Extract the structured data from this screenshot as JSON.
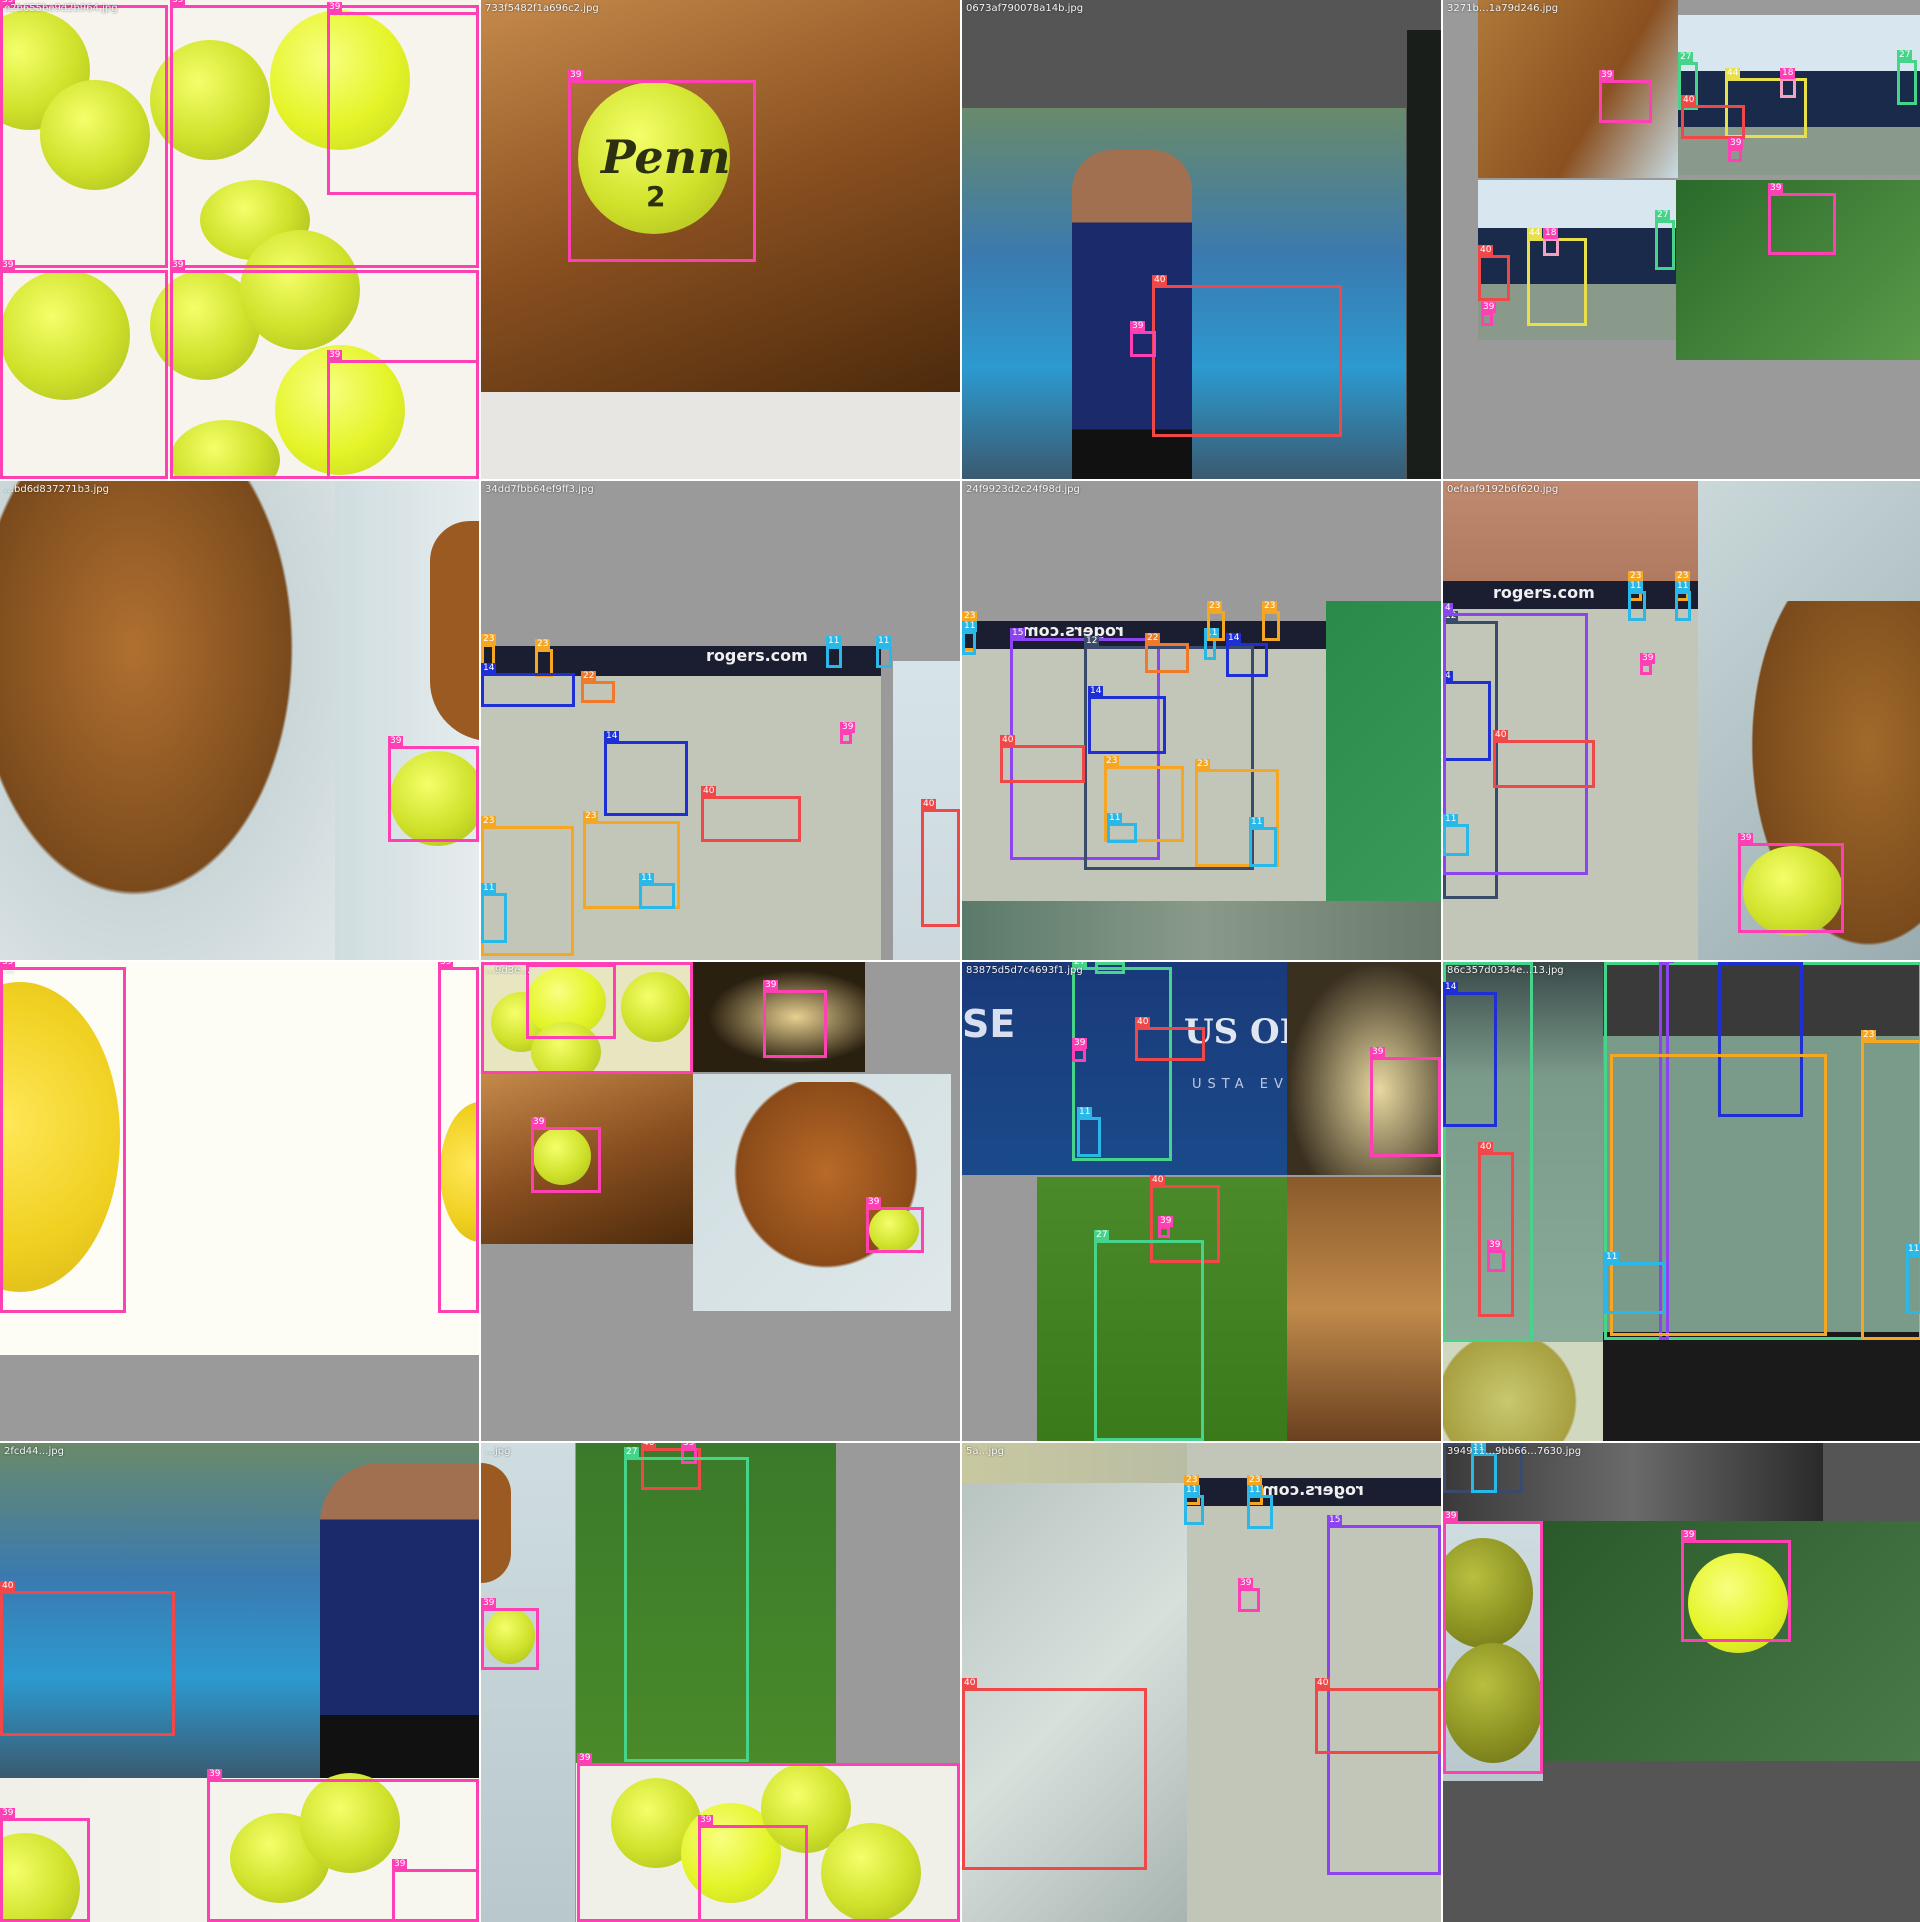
{
  "colors": {
    "tennis_ball": "#ff3fb4",
    "tennis_racket": "#f04848",
    "person": "#46d48a",
    "sports_ball_alt": "#ff3fb4",
    "shoe": "#2ab8e8",
    "bag": "#f5a623",
    "hand": "#f5a623",
    "arm": "#1e2fd6",
    "body": "#8b44f0",
    "head": "#f07a2a",
    "cap": "#e8e04a",
    "face": "#f4a0c0",
    "gray_bg": "#9a9a9a",
    "dark_gray": "#555555"
  },
  "tiles": [
    {
      "name": "tile-1",
      "filename": "e2b655be9d2b964.jpg",
      "labels": [
        "39",
        "39",
        "39",
        "39",
        "39",
        "39",
        "39"
      ]
    },
    {
      "name": "tile-2",
      "filename": "733f5482f1a696c2.jpg",
      "labels": [
        "39"
      ]
    },
    {
      "name": "tile-3",
      "filename": "0673af790078a14b.jpg",
      "labels": [
        "40",
        "39"
      ]
    },
    {
      "name": "tile-4",
      "filename": "3271b…1a79d246.jpg",
      "labels": [
        "39",
        "27",
        "44",
        "18",
        "40",
        "39",
        "27",
        "44",
        "18",
        "40",
        "39",
        "27",
        "39"
      ]
    },
    {
      "name": "tile-5",
      "filename": "…bd6d837271b3.jpg",
      "labels": [
        "39"
      ]
    },
    {
      "name": "tile-6",
      "filename": "34dd7fbb64ef9ff3.jpg",
      "labels": [
        "23",
        "23",
        "14",
        "22",
        "11",
        "11",
        "14",
        "40",
        "39",
        "23",
        "23",
        "11",
        "11",
        "40"
      ]
    },
    {
      "name": "tile-7",
      "filename": "24f9923d2c24f98d.jpg",
      "labels": [
        "23",
        "11",
        "15",
        "12",
        "22",
        "14",
        "11",
        "23",
        "23",
        "14",
        "40",
        "23",
        "23",
        "11",
        "11"
      ]
    },
    {
      "name": "tile-8",
      "filename": "0efaaf9192b6f620.jpg",
      "labels": [
        "23",
        "11",
        "23",
        "11",
        "12",
        "4",
        "40",
        "39",
        "11",
        "39"
      ]
    },
    {
      "name": "tile-9",
      "filename": "…",
      "labels": [
        "39",
        "39"
      ]
    },
    {
      "name": "tile-10",
      "filename": "…9d3e…",
      "labels": [
        "39",
        "39",
        "39",
        "39",
        "39",
        "39"
      ]
    },
    {
      "name": "tile-11",
      "filename": "83875d5d7c4693f1.jpg",
      "labels": [
        "27",
        "27",
        "40",
        "39",
        "11",
        "40",
        "39",
        "27",
        "39"
      ]
    },
    {
      "name": "tile-12",
      "filename": "86c357d0334e…13.jpg",
      "labels": [
        "27",
        "14",
        "40",
        "39",
        "27",
        "15",
        "14",
        "23",
        "11",
        "11"
      ]
    },
    {
      "name": "tile-13",
      "filename": "2fcd44…jpg",
      "labels": [
        "40",
        "39",
        "39",
        "39"
      ]
    },
    {
      "name": "tile-14",
      "filename": "…jpg",
      "labels": [
        "40",
        "39",
        "27",
        "39",
        "39",
        "39"
      ]
    },
    {
      "name": "tile-15",
      "filename": "5a…jpg",
      "labels": [
        "23",
        "11",
        "23",
        "11",
        "15",
        "39",
        "40",
        "40"
      ]
    },
    {
      "name": "tile-16",
      "filename": "394911…9bb66…7630.jpg",
      "labels": [
        "12",
        "11",
        "39",
        "39"
      ]
    }
  ],
  "watermarks": {
    "rogers": "rogers.com",
    "us_open": "US OPEN",
    "us_open_sub": "USTA EV",
    "se": "SE",
    "penn": "Penn",
    "penn_num": "2"
  }
}
